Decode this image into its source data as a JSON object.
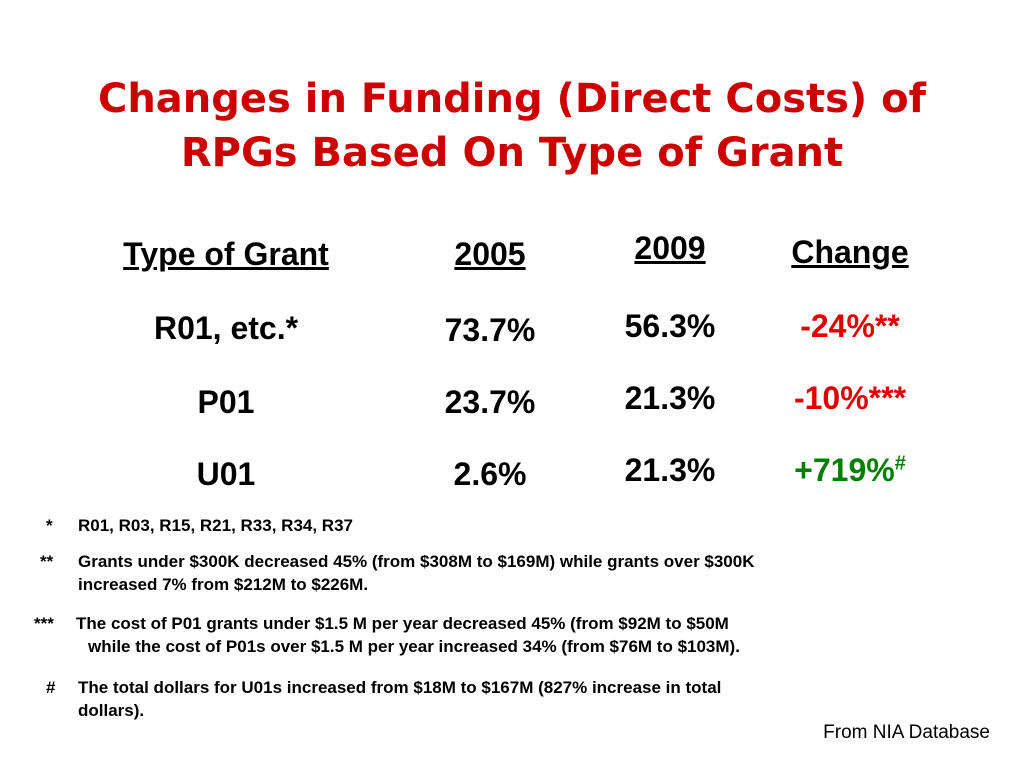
{
  "title": {
    "line1": "Changes in Funding (Direct Costs) of",
    "line2": "RPGs Based On Type of Grant"
  },
  "table": {
    "headers": [
      "Type of Grant",
      "2005",
      "2009",
      "Change"
    ],
    "rows": [
      {
        "type": "R01, etc.*",
        "y2005": "73.7%",
        "y2009": "56.3%",
        "change": "-24%**",
        "change_sup": ""
      },
      {
        "type": "P01",
        "y2005": "23.7%",
        "y2009": "21.3%",
        "change": "-10%***",
        "change_sup": ""
      },
      {
        "type": "U01",
        "y2005": "2.6%",
        "y2009": "21.3%",
        "change": "+719%",
        "change_sup": "#"
      }
    ]
  },
  "footnotes": [
    {
      "marker": "*",
      "text": "R01, R03, R15, R21, R33, R34, R37"
    },
    {
      "marker": "**",
      "line1": "Grants under $300K decreased 45% (from $308M to $169M) while grants over $300K",
      "line2": "increased 7% from $212M to $226M."
    },
    {
      "marker": "***",
      "line1": "The cost of P01 grants under $1.5 M per year decreased 45% (from $92M to $50M",
      "line2": "while the cost of P01s over $1.5 M per year increased 34% (from $76M to $103M)."
    },
    {
      "marker": "#",
      "line1": "The total dollars for U01s increased from $18M to $167M (827% increase in total",
      "line2": "dollars)."
    }
  ],
  "source": "From NIA Database",
  "colors": {
    "title": "#cc0000",
    "negative": "#e00000",
    "positive": "#008000"
  }
}
